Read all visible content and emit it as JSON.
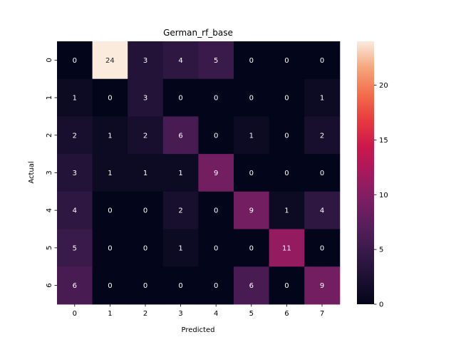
{
  "chart_data": {
    "type": "heatmap",
    "title": "German_rf_base",
    "xlabel": "Predicted",
    "ylabel": "Actual",
    "x_categories": [
      "0",
      "1",
      "2",
      "3",
      "4",
      "5",
      "6",
      "7"
    ],
    "y_categories": [
      "0",
      "1",
      "2",
      "3",
      "4",
      "5",
      "6"
    ],
    "values": [
      [
        0,
        24,
        3,
        4,
        5,
        0,
        0,
        0
      ],
      [
        1,
        0,
        3,
        0,
        0,
        0,
        0,
        1
      ],
      [
        2,
        1,
        2,
        6,
        0,
        1,
        0,
        2
      ],
      [
        3,
        1,
        1,
        1,
        9,
        0,
        0,
        0
      ],
      [
        4,
        0,
        0,
        2,
        0,
        9,
        1,
        4
      ],
      [
        5,
        0,
        0,
        1,
        0,
        0,
        11,
        0
      ],
      [
        6,
        0,
        0,
        0,
        0,
        6,
        0,
        9
      ]
    ],
    "colorbar": {
      "min": 0,
      "max": 24,
      "ticks": [
        "0",
        "5",
        "10",
        "15",
        "20"
      ]
    },
    "colormap": "rocket"
  }
}
